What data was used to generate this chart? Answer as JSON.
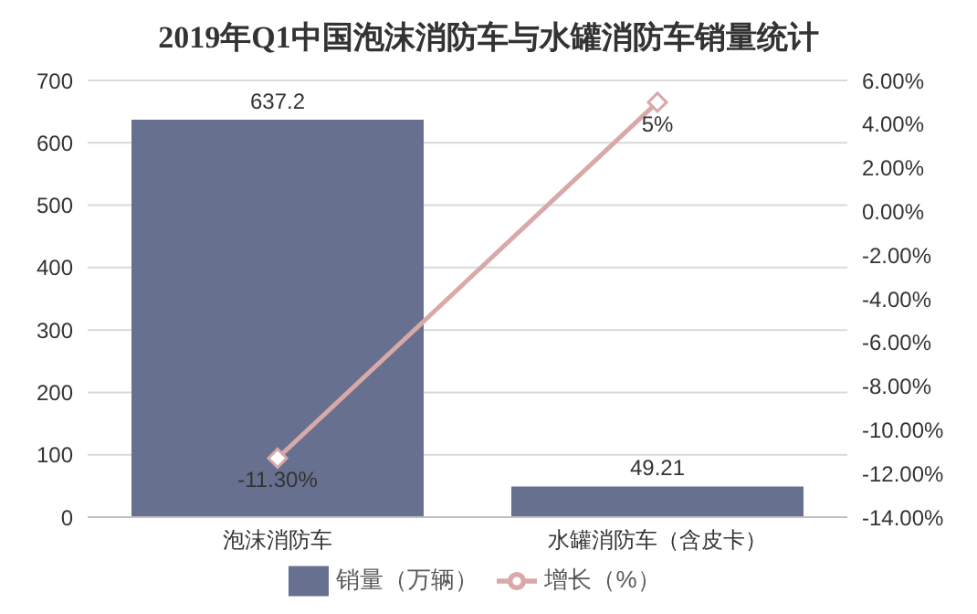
{
  "chart_data": {
    "type": "bar",
    "title": "2019年Q1中国泡沫消防车与水罐消防车销量统计",
    "categories": [
      "泡沫消防车",
      "水罐消防车（含皮卡）"
    ],
    "series": [
      {
        "name": "销量（万辆）",
        "color": "#67718f",
        "values": [
          637.2,
          49.21
        ],
        "value_labels": [
          "637.2",
          "49.21"
        ]
      },
      {
        "name": "增长（%）",
        "type": "line",
        "axis": "y2",
        "color": "#d9a9a9",
        "values": [
          -11.3,
          5
        ],
        "value_labels": [
          "-11.30%",
          "5%"
        ]
      }
    ],
    "ylim": [
      0,
      700
    ],
    "yticks": [
      0,
      100,
      200,
      300,
      400,
      500,
      600,
      700
    ],
    "y2lim": [
      -14,
      6
    ],
    "y2ticks": [
      {
        "value": -14,
        "label": "-14.00%"
      },
      {
        "value": -12,
        "label": "-12.00%"
      },
      {
        "value": -10,
        "label": "-10.00%"
      },
      {
        "value": -8,
        "label": "-8.00%"
      },
      {
        "value": -6,
        "label": "-6.00%"
      },
      {
        "value": -4,
        "label": "-4.00%"
      },
      {
        "value": -2,
        "label": "-2.00%"
      },
      {
        "value": 0,
        "label": "0.00%"
      },
      {
        "value": 2,
        "label": "2.00%"
      },
      {
        "value": 4,
        "label": "4.00%"
      },
      {
        "value": 6,
        "label": "6.00%"
      }
    ],
    "grid": "y",
    "legend": "bottom",
    "marker": "diamond"
  }
}
